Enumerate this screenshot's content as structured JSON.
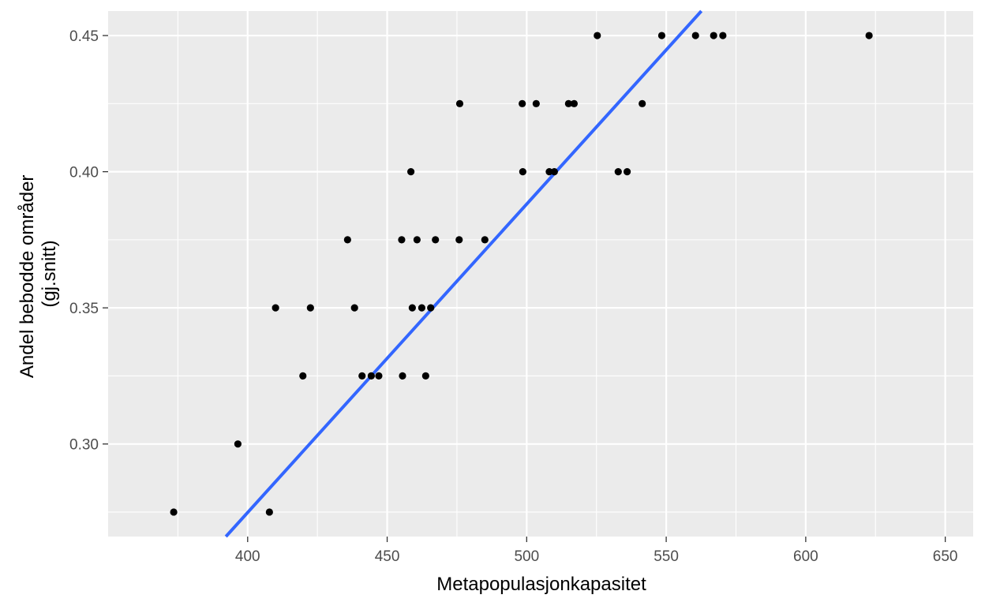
{
  "chart_data": {
    "type": "scatter",
    "title": "",
    "xlabel": "Metapopulasjonkapasitet",
    "ylabel": [
      "Andel bebodde områder",
      "(gj.snitt)"
    ],
    "xlim": [
      350,
      660
    ],
    "ylim": [
      0.266,
      0.459
    ],
    "x_major_ticks": [
      400,
      450,
      500,
      550,
      600,
      650
    ],
    "x_tick_labels": [
      "400",
      "450",
      "500",
      "550",
      "600",
      "650"
    ],
    "y_major_ticks": [
      0.3,
      0.35,
      0.4,
      0.45
    ],
    "y_tick_labels": [
      "0.30",
      "0.35",
      "0.40",
      "0.45"
    ],
    "x_minor_ticks": [
      375,
      425,
      475,
      525,
      575,
      625
    ],
    "y_minor_ticks": [
      0.275,
      0.325,
      0.375,
      0.425
    ],
    "grid": true,
    "series": [
      {
        "kind": "points",
        "points": [
          [
            373.5,
            0.275
          ],
          [
            396.5,
            0.3
          ],
          [
            407.8,
            0.275
          ],
          [
            410,
            0.35
          ],
          [
            419.8,
            0.325
          ],
          [
            422.5,
            0.35
          ],
          [
            435.8,
            0.375
          ],
          [
            438.3,
            0.35
          ],
          [
            441,
            0.325
          ],
          [
            444.3,
            0.325
          ],
          [
            447,
            0.325
          ],
          [
            455.2,
            0.375
          ],
          [
            455.5,
            0.325
          ],
          [
            458.5,
            0.4
          ],
          [
            459,
            0.35
          ],
          [
            460.7,
            0.375
          ],
          [
            462.4,
            0.35
          ],
          [
            463.8,
            0.325
          ],
          [
            465.6,
            0.35
          ],
          [
            467.3,
            0.375
          ],
          [
            475.8,
            0.375
          ],
          [
            476,
            0.425
          ],
          [
            485,
            0.375
          ],
          [
            498.4,
            0.425
          ],
          [
            498.6,
            0.4
          ],
          [
            503.4,
            0.425
          ],
          [
            508.1,
            0.4
          ],
          [
            509.9,
            0.4
          ],
          [
            515,
            0.425
          ],
          [
            517,
            0.425
          ],
          [
            525.3,
            0.45
          ],
          [
            532.8,
            0.4
          ],
          [
            536,
            0.4
          ],
          [
            541.4,
            0.425
          ],
          [
            548.4,
            0.45
          ],
          [
            560.5,
            0.45
          ],
          [
            567,
            0.45
          ],
          [
            570.3,
            0.45
          ],
          [
            622.7,
            0.45
          ]
        ],
        "color": "#000000"
      },
      {
        "kind": "fit_line",
        "method": "linear",
        "color": "#3366ff",
        "points": [
          [
            392.2,
            0.266
          ],
          [
            562.6,
            0.459
          ]
        ]
      }
    ],
    "colors": {
      "panel": "#ebebeb",
      "grid": "#ffffff",
      "tick": "#333333"
    }
  }
}
